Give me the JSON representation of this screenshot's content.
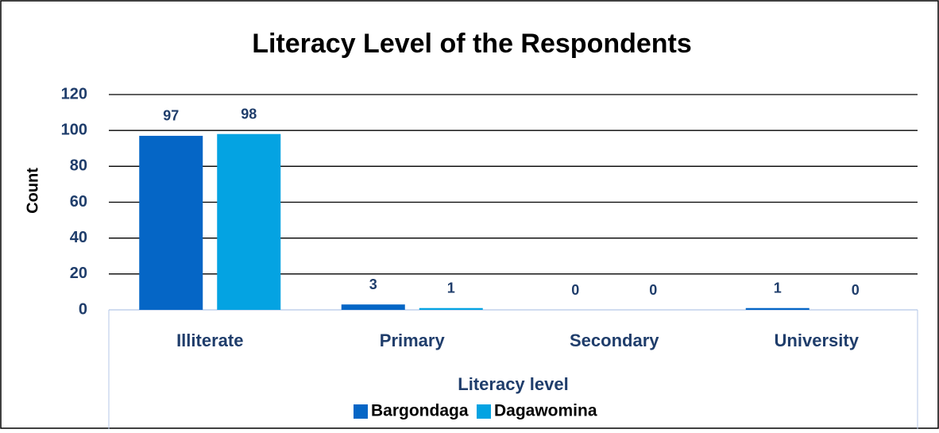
{
  "chart_data": {
    "type": "bar",
    "title": "Literacy Level of the Respondents",
    "x_label": "Literacy level",
    "y_label": "Count",
    "categories": [
      "Illiterate",
      "Primary",
      "Secondary",
      "University"
    ],
    "series": [
      {
        "name": "Bargondaga",
        "color": "#0566c6",
        "values": [
          97,
          3,
          0,
          1
        ]
      },
      {
        "name": "Dagawomina",
        "color": "#04a3e2",
        "values": [
          98,
          1,
          0,
          0
        ]
      }
    ],
    "ylim": [
      0,
      120
    ],
    "yticks": [
      0,
      20,
      40,
      60,
      80,
      100,
      120
    ],
    "grid": true,
    "legend": "bottom"
  }
}
